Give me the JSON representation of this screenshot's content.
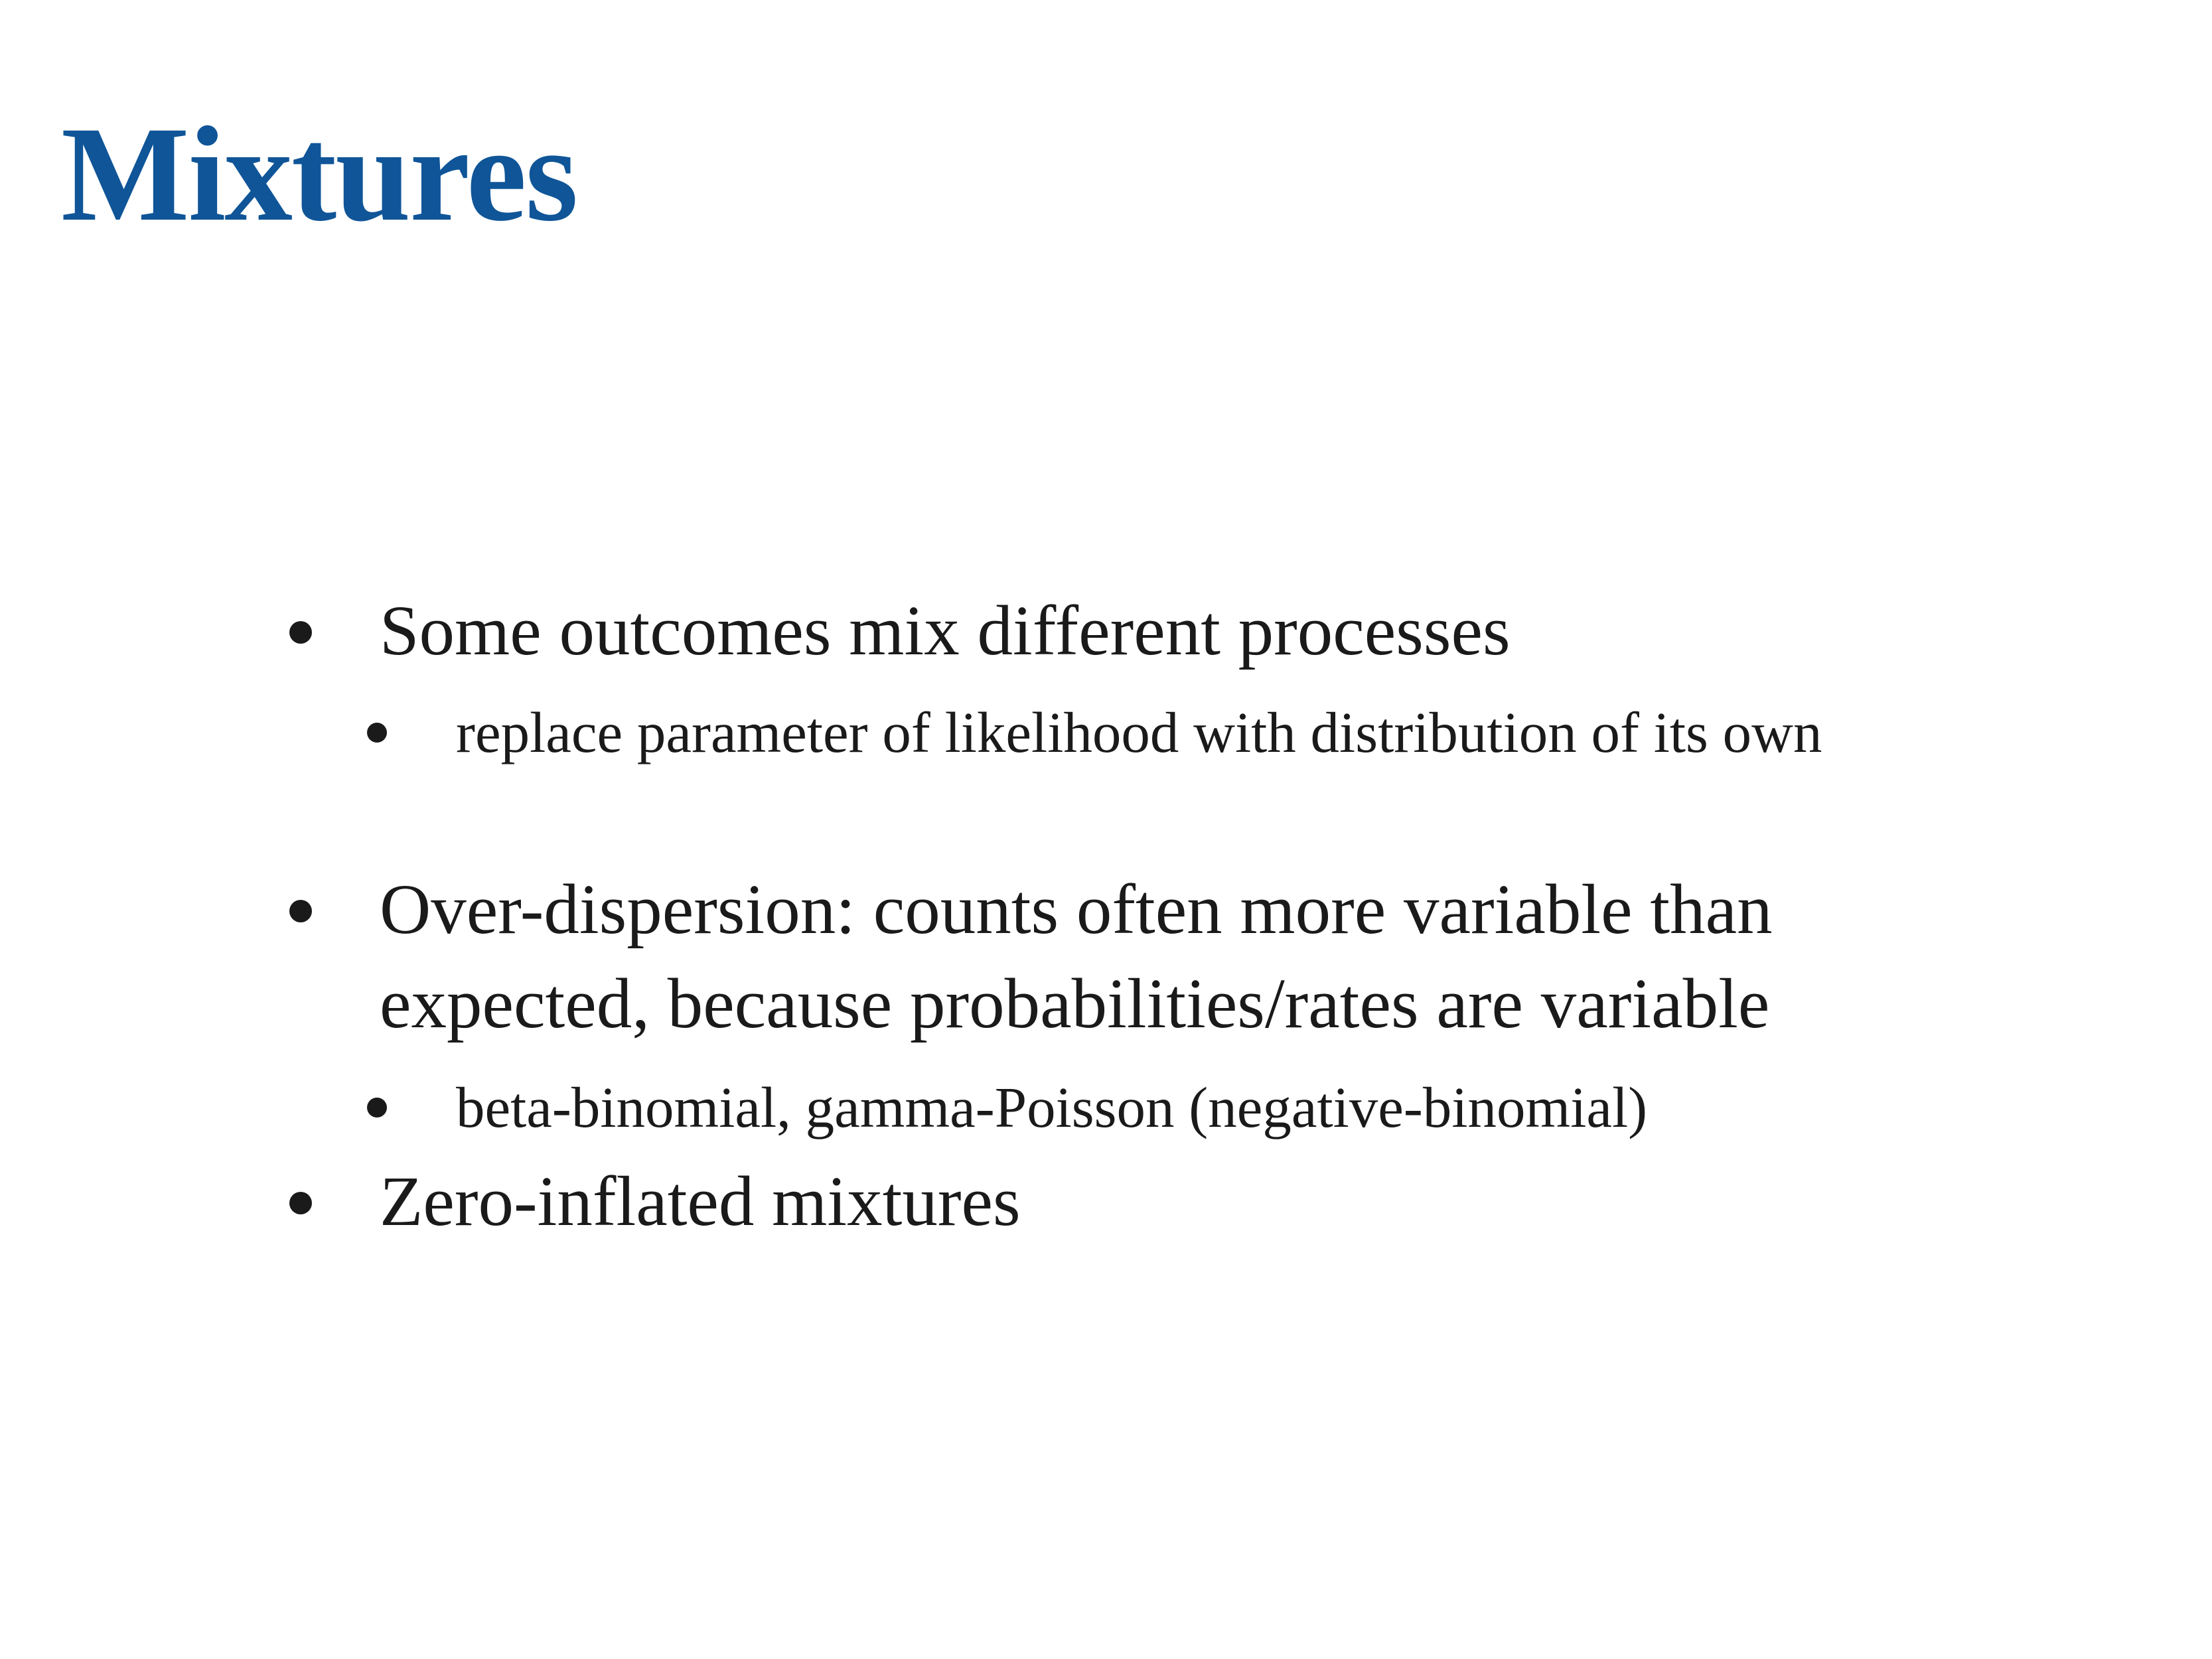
{
  "slide": {
    "title": "Mixtures",
    "title_color": "#0f5598",
    "bullets": [
      {
        "text": "Some outcomes mix different processes",
        "sub": [
          {
            "text": "replace parameter of likelihood with distribution of its own"
          }
        ]
      },
      {
        "text": "Over-dispersion: counts often more variable than expected, because probabilities/rates are variable",
        "sub": [
          {
            "text": "beta-binomial, gamma-Poisson (negative-binomial)"
          }
        ]
      },
      {
        "text": "Zero-inflated mixtures",
        "sub": []
      }
    ]
  }
}
